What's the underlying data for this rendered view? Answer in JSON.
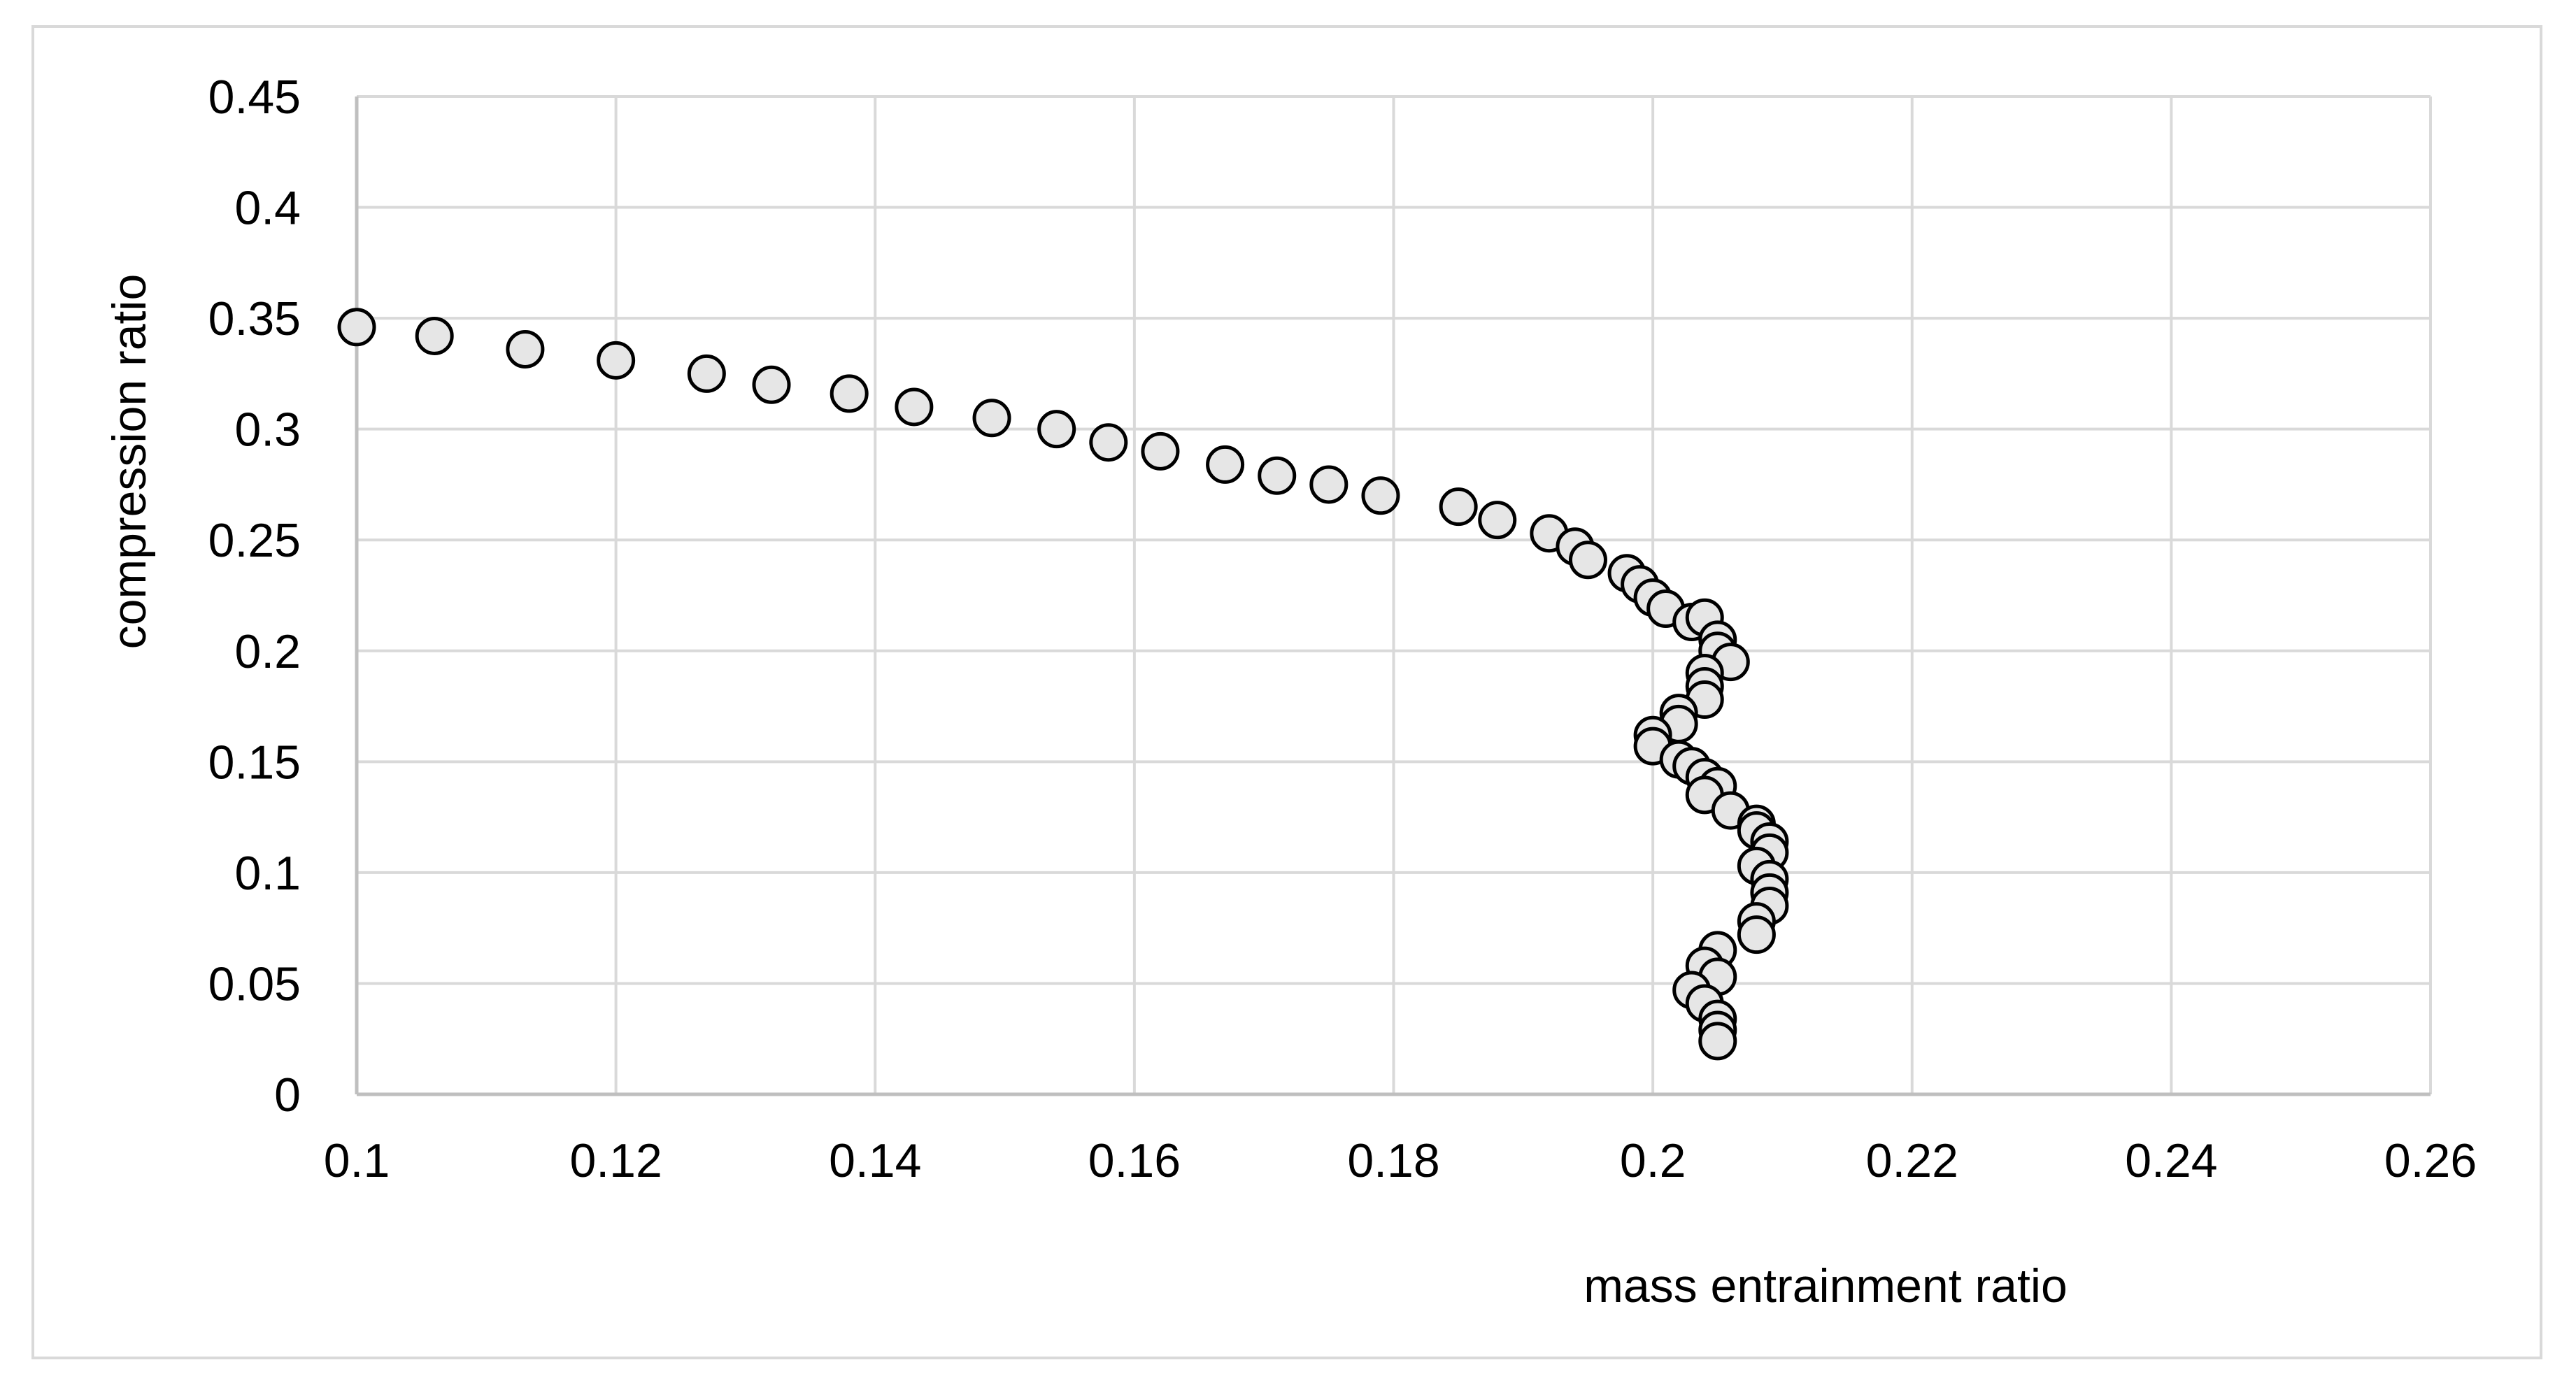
{
  "chart_data": {
    "type": "scatter",
    "title": "",
    "xlabel": "mass entrainment ratio",
    "ylabel": "compression ratio",
    "xlim": [
      0.1,
      0.26
    ],
    "ylim": [
      0,
      0.45
    ],
    "x_ticks": [
      "0.1",
      "0.12",
      "0.14",
      "0.16",
      "0.18",
      "0.2",
      "0.22",
      "0.24",
      "0.26"
    ],
    "y_ticks": [
      "0",
      "0.05",
      "0.1",
      "0.15",
      "0.2",
      "0.25",
      "0.3",
      "0.35",
      "0.4",
      "0.45"
    ],
    "grid": true,
    "legend": "none",
    "marker_fill": "#e6e6e6",
    "marker_edge": "#000000",
    "grid_color": "#d9d9d9",
    "series": [
      {
        "points": [
          [
            0.1,
            0.346
          ],
          [
            0.106,
            0.342
          ],
          [
            0.113,
            0.336
          ],
          [
            0.12,
            0.331
          ],
          [
            0.127,
            0.325
          ],
          [
            0.132,
            0.32
          ],
          [
            0.138,
            0.316
          ],
          [
            0.143,
            0.31
          ],
          [
            0.149,
            0.305
          ],
          [
            0.154,
            0.3
          ],
          [
            0.158,
            0.294
          ],
          [
            0.162,
            0.29
          ],
          [
            0.167,
            0.284
          ],
          [
            0.171,
            0.279
          ],
          [
            0.175,
            0.275
          ],
          [
            0.179,
            0.27
          ],
          [
            0.185,
            0.265
          ],
          [
            0.188,
            0.259
          ],
          [
            0.192,
            0.253
          ],
          [
            0.194,
            0.247
          ],
          [
            0.195,
            0.241
          ],
          [
            0.198,
            0.235
          ],
          [
            0.199,
            0.23
          ],
          [
            0.2,
            0.224
          ],
          [
            0.201,
            0.219
          ],
          [
            0.203,
            0.213
          ],
          [
            0.204,
            0.215
          ],
          [
            0.205,
            0.205
          ],
          [
            0.205,
            0.2
          ],
          [
            0.206,
            0.195
          ],
          [
            0.204,
            0.19
          ],
          [
            0.204,
            0.184
          ],
          [
            0.204,
            0.178
          ],
          [
            0.202,
            0.172
          ],
          [
            0.202,
            0.167
          ],
          [
            0.2,
            0.162
          ],
          [
            0.2,
            0.157
          ],
          [
            0.202,
            0.151
          ],
          [
            0.203,
            0.148
          ],
          [
            0.204,
            0.143
          ],
          [
            0.205,
            0.139
          ],
          [
            0.204,
            0.135
          ],
          [
            0.206,
            0.128
          ],
          [
            0.208,
            0.122
          ],
          [
            0.208,
            0.119
          ],
          [
            0.209,
            0.114
          ],
          [
            0.209,
            0.109
          ],
          [
            0.208,
            0.103
          ],
          [
            0.209,
            0.097
          ],
          [
            0.209,
            0.091
          ],
          [
            0.209,
            0.085
          ],
          [
            0.208,
            0.078
          ],
          [
            0.208,
            0.072
          ],
          [
            0.205,
            0.065
          ],
          [
            0.204,
            0.058
          ],
          [
            0.205,
            0.053
          ],
          [
            0.203,
            0.047
          ],
          [
            0.204,
            0.041
          ],
          [
            0.205,
            0.034
          ],
          [
            0.205,
            0.029
          ],
          [
            0.205,
            0.024
          ]
        ]
      }
    ]
  }
}
